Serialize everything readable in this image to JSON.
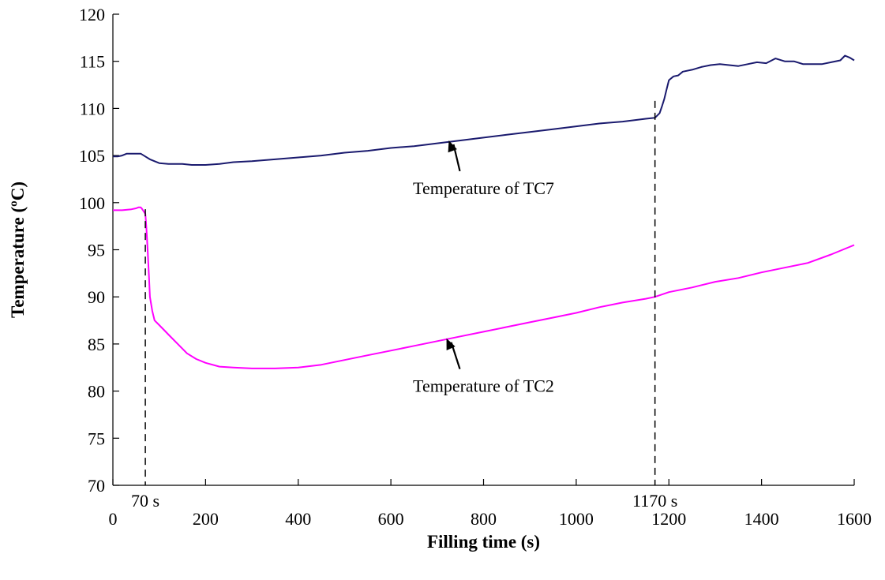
{
  "chart_data": {
    "type": "line",
    "title": "",
    "xlabel": "Filling time (s)",
    "ylabel": "Temperature (ºC)",
    "xlim": [
      0,
      1600
    ],
    "ylim": [
      70,
      120
    ],
    "xticks": [
      0,
      200,
      400,
      600,
      800,
      1000,
      1200,
      1400,
      1600
    ],
    "yticks": [
      70,
      75,
      80,
      85,
      90,
      95,
      100,
      105,
      110,
      115,
      120
    ],
    "xtick_labels": [
      "0",
      "200",
      "400",
      "600",
      "800",
      "1000",
      "1200",
      "1400",
      "1600"
    ],
    "ytick_labels": [
      "70",
      "75",
      "80",
      "85",
      "90",
      "95",
      "100",
      "105",
      "110",
      "115",
      "120"
    ],
    "grid": false,
    "legend": "none",
    "series": [
      {
        "color": "#1a1a6e",
        "x": [
          0,
          10,
          20,
          30,
          40,
          50,
          60,
          70,
          80,
          90,
          100,
          120,
          150,
          170,
          200,
          230,
          260,
          300,
          350,
          400,
          450,
          500,
          550,
          600,
          650,
          700,
          750,
          800,
          850,
          900,
          950,
          1000,
          1050,
          1100,
          1150,
          1170,
          1180,
          1185,
          1190,
          1195,
          1200,
          1210,
          1220,
          1230,
          1250,
          1270,
          1290,
          1310,
          1330,
          1350,
          1370,
          1390,
          1410,
          1430,
          1450,
          1470,
          1490,
          1510,
          1530,
          1550,
          1570,
          1580,
          1590,
          1600
        ],
        "y": [
          104.9,
          104.9,
          105.0,
          105.2,
          105.2,
          105.2,
          105.2,
          104.9,
          104.6,
          104.4,
          104.2,
          104.1,
          104.1,
          104.0,
          104.0,
          104.1,
          104.3,
          104.4,
          104.6,
          104.8,
          105.0,
          105.3,
          105.5,
          105.8,
          106.0,
          106.3,
          106.6,
          106.9,
          107.2,
          107.5,
          107.8,
          108.1,
          108.4,
          108.6,
          108.9,
          109.0,
          109.5,
          110.2,
          111.0,
          112.0,
          113.0,
          113.4,
          113.5,
          113.9,
          114.1,
          114.4,
          114.6,
          114.7,
          114.6,
          114.5,
          114.7,
          114.9,
          114.8,
          115.3,
          115.0,
          115.0,
          114.7,
          114.7,
          114.7,
          114.9,
          115.1,
          115.6,
          115.4,
          115.1
        ]
      },
      {
        "color": "#ff00ff",
        "x": [
          0,
          20,
          40,
          50,
          55,
          60,
          62,
          65,
          70,
          72,
          75,
          78,
          80,
          85,
          90,
          100,
          110,
          120,
          140,
          160,
          180,
          200,
          230,
          260,
          300,
          350,
          400,
          450,
          500,
          550,
          600,
          650,
          700,
          750,
          800,
          850,
          900,
          950,
          1000,
          1050,
          1100,
          1150,
          1170,
          1200,
          1250,
          1300,
          1350,
          1400,
          1450,
          1500,
          1550,
          1600
        ],
        "y": [
          99.2,
          99.2,
          99.3,
          99.4,
          99.5,
          99.5,
          99.4,
          99.2,
          98.8,
          97.5,
          95.0,
          92.0,
          90.0,
          88.5,
          87.5,
          87.0,
          86.5,
          86.0,
          85.0,
          84.0,
          83.4,
          83.0,
          82.6,
          82.5,
          82.4,
          82.4,
          82.5,
          82.8,
          83.3,
          83.8,
          84.3,
          84.8,
          85.3,
          85.8,
          86.3,
          86.8,
          87.3,
          87.8,
          88.3,
          88.9,
          89.4,
          89.8,
          90.0,
          90.5,
          91.0,
          91.6,
          92.0,
          92.6,
          93.1,
          93.6,
          94.5,
          95.5
        ]
      }
    ],
    "annotations": [
      {
        "text": "Temperature of TC7",
        "target": [
          725,
          106.6
        ],
        "label_pos": [
          800,
          101.5
        ]
      },
      {
        "text": "Temperature of TC2",
        "target": [
          720,
          85.6
        ],
        "label_pos": [
          800,
          80.5
        ]
      }
    ],
    "markers": [
      {
        "label": "70 s",
        "x": 70
      },
      {
        "label": "1170 s",
        "x": 1170
      }
    ]
  }
}
